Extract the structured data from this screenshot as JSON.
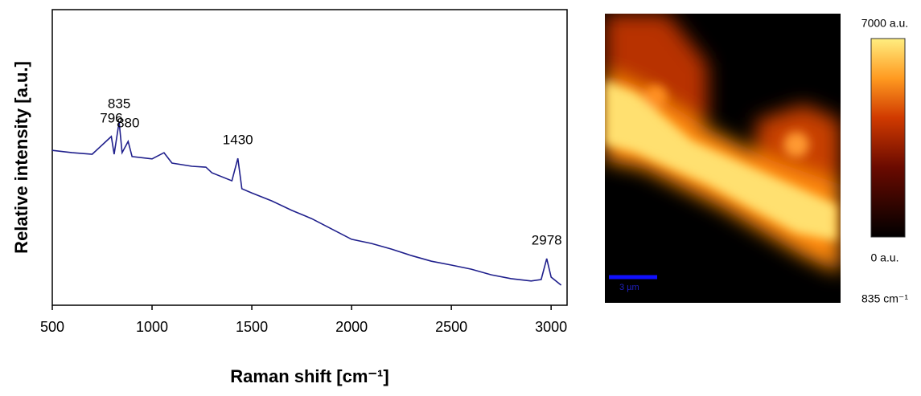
{
  "chart_data": [
    {
      "type": "line",
      "xlabel": "Raman shift [cm⁻¹]",
      "ylabel": "Relative intensity [a.u.]",
      "color": "#1f1f8c",
      "x": [
        500,
        600,
        700,
        796,
        810,
        835,
        850,
        880,
        900,
        1000,
        1060,
        1100,
        1200,
        1270,
        1300,
        1400,
        1430,
        1450,
        1500,
        1600,
        1700,
        1800,
        1900,
        2000,
        2100,
        2200,
        2300,
        2400,
        2500,
        2600,
        2700,
        2800,
        2900,
        2950,
        2978,
        3000,
        3050
      ],
      "values": [
        52.4,
        51.6,
        51.1,
        57.1,
        51.1,
        62.0,
        51.6,
        55.4,
        50.3,
        49.5,
        51.6,
        48.1,
        47.0,
        46.7,
        44.8,
        42.1,
        49.7,
        39.4,
        38.0,
        35.3,
        32.1,
        29.3,
        25.8,
        22.3,
        20.9,
        19.0,
        16.8,
        14.9,
        13.6,
        12.2,
        10.3,
        9.0,
        8.2,
        8.7,
        15.8,
        9.5,
        6.8
      ],
      "xlim": [
        500,
        3080
      ],
      "ylim": [
        0,
        100
      ],
      "xticks": [
        500,
        1000,
        1500,
        2000,
        2500,
        3000
      ],
      "annotations": [
        {
          "text": "796",
          "x": 796,
          "y": 57.1
        },
        {
          "text": "835",
          "x": 835,
          "y": 62.0
        },
        {
          "text": "880",
          "x": 880,
          "y": 55.4
        },
        {
          "text": "1430",
          "x": 1430,
          "y": 49.7
        },
        {
          "text": "2978",
          "x": 2978,
          "y": 15.8
        }
      ]
    },
    {
      "type": "heatmap",
      "clim": [
        0,
        7000
      ],
      "cticks": [
        {
          "value": 7000,
          "label": "7000 a.u."
        },
        {
          "value": 0,
          "label": "0 a.u."
        }
      ],
      "clabel": "835 cm⁻¹",
      "scalebar": "3 µm"
    }
  ]
}
